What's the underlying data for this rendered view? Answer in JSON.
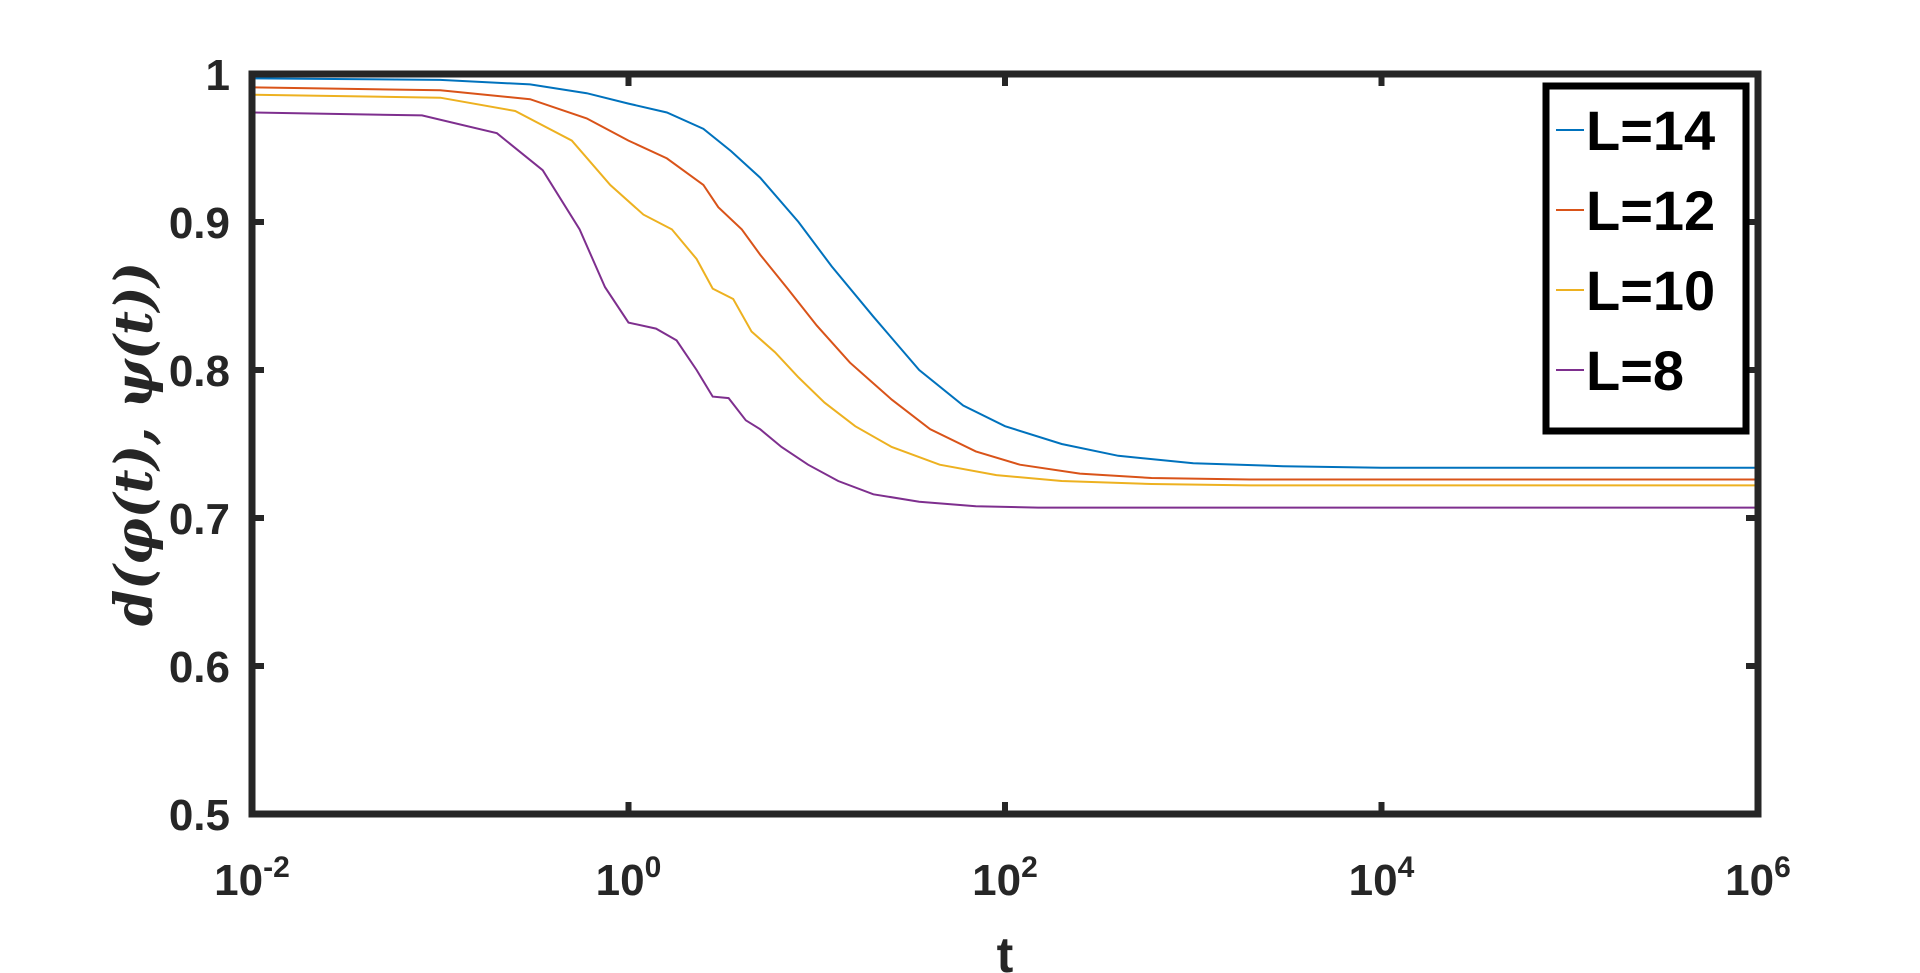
{
  "chart_data": {
    "type": "line",
    "title": "",
    "xlabel": "t",
    "ylabel": "d(φ(t), ψ(t))",
    "xscale": "log",
    "xlim": [
      0.01,
      1000000
    ],
    "ylim": [
      0.5,
      1
    ],
    "x_ticks": [
      0.01,
      1,
      100,
      10000,
      1000000
    ],
    "x_tick_labels": [
      {
        "base": "10",
        "exp": "-2"
      },
      {
        "base": "10",
        "exp": "0"
      },
      {
        "base": "10",
        "exp": "2"
      },
      {
        "base": "10",
        "exp": "4"
      },
      {
        "base": "10",
        "exp": "6"
      }
    ],
    "y_ticks": [
      0.5,
      0.6,
      0.7,
      0.8,
      0.9,
      1
    ],
    "y_tick_labels": [
      "0.5",
      "0.6",
      "0.7",
      "0.8",
      "0.9",
      "1"
    ],
    "grid": false,
    "legend_position": "top-right",
    "series": [
      {
        "name": "L=14",
        "color": "#0072BD",
        "points": [
          [
            0.01,
            0.997
          ],
          [
            0.1,
            0.996
          ],
          [
            0.3,
            0.993
          ],
          [
            0.6,
            0.987
          ],
          [
            1,
            0.98
          ],
          [
            1.6,
            0.974
          ],
          [
            2.5,
            0.963
          ],
          [
            3.5,
            0.948
          ],
          [
            5,
            0.93
          ],
          [
            8,
            0.9
          ],
          [
            12,
            0.87
          ],
          [
            20,
            0.836
          ],
          [
            35,
            0.8
          ],
          [
            60,
            0.776
          ],
          [
            100,
            0.762
          ],
          [
            200,
            0.75
          ],
          [
            400,
            0.742
          ],
          [
            1000,
            0.737
          ],
          [
            3000,
            0.735
          ],
          [
            10000,
            0.734
          ],
          [
            100000,
            0.734
          ],
          [
            1000000,
            0.734
          ]
        ]
      },
      {
        "name": "L=12",
        "color": "#D95319",
        "points": [
          [
            0.01,
            0.991
          ],
          [
            0.1,
            0.989
          ],
          [
            0.3,
            0.983
          ],
          [
            0.6,
            0.97
          ],
          [
            1,
            0.955
          ],
          [
            1.6,
            0.943
          ],
          [
            2.5,
            0.925
          ],
          [
            3,
            0.91
          ],
          [
            4,
            0.895
          ],
          [
            5,
            0.878
          ],
          [
            7,
            0.855
          ],
          [
            10,
            0.83
          ],
          [
            15,
            0.805
          ],
          [
            25,
            0.78
          ],
          [
            40,
            0.76
          ],
          [
            70,
            0.745
          ],
          [
            120,
            0.736
          ],
          [
            250,
            0.73
          ],
          [
            600,
            0.727
          ],
          [
            2000,
            0.726
          ],
          [
            100000,
            0.726
          ],
          [
            1000000,
            0.726
          ]
        ]
      },
      {
        "name": "L=10",
        "color": "#EDB120",
        "points": [
          [
            0.01,
            0.986
          ],
          [
            0.1,
            0.984
          ],
          [
            0.25,
            0.975
          ],
          [
            0.5,
            0.955
          ],
          [
            0.8,
            0.925
          ],
          [
            1.2,
            0.905
          ],
          [
            1.7,
            0.895
          ],
          [
            2.3,
            0.875
          ],
          [
            2.8,
            0.855
          ],
          [
            3.6,
            0.848
          ],
          [
            4.5,
            0.826
          ],
          [
            6,
            0.812
          ],
          [
            8,
            0.795
          ],
          [
            11,
            0.778
          ],
          [
            16,
            0.762
          ],
          [
            25,
            0.748
          ],
          [
            45,
            0.736
          ],
          [
            90,
            0.729
          ],
          [
            200,
            0.725
          ],
          [
            600,
            0.723
          ],
          [
            2000,
            0.722
          ],
          [
            100000,
            0.722
          ],
          [
            1000000,
            0.722
          ]
        ]
      },
      {
        "name": "L=8",
        "color": "#7E2F8E",
        "points": [
          [
            0.01,
            0.974
          ],
          [
            0.08,
            0.972
          ],
          [
            0.2,
            0.96
          ],
          [
            0.35,
            0.935
          ],
          [
            0.55,
            0.895
          ],
          [
            0.75,
            0.856
          ],
          [
            1,
            0.832
          ],
          [
            1.4,
            0.828
          ],
          [
            1.8,
            0.82
          ],
          [
            2.3,
            0.8
          ],
          [
            2.8,
            0.782
          ],
          [
            3.4,
            0.781
          ],
          [
            4.2,
            0.766
          ],
          [
            5,
            0.76
          ],
          [
            6.5,
            0.748
          ],
          [
            9,
            0.736
          ],
          [
            13,
            0.725
          ],
          [
            20,
            0.716
          ],
          [
            35,
            0.711
          ],
          [
            70,
            0.708
          ],
          [
            150,
            0.707
          ],
          [
            500,
            0.707
          ],
          [
            5000,
            0.707
          ],
          [
            100000,
            0.707
          ],
          [
            1000000,
            0.707
          ]
        ]
      }
    ]
  }
}
